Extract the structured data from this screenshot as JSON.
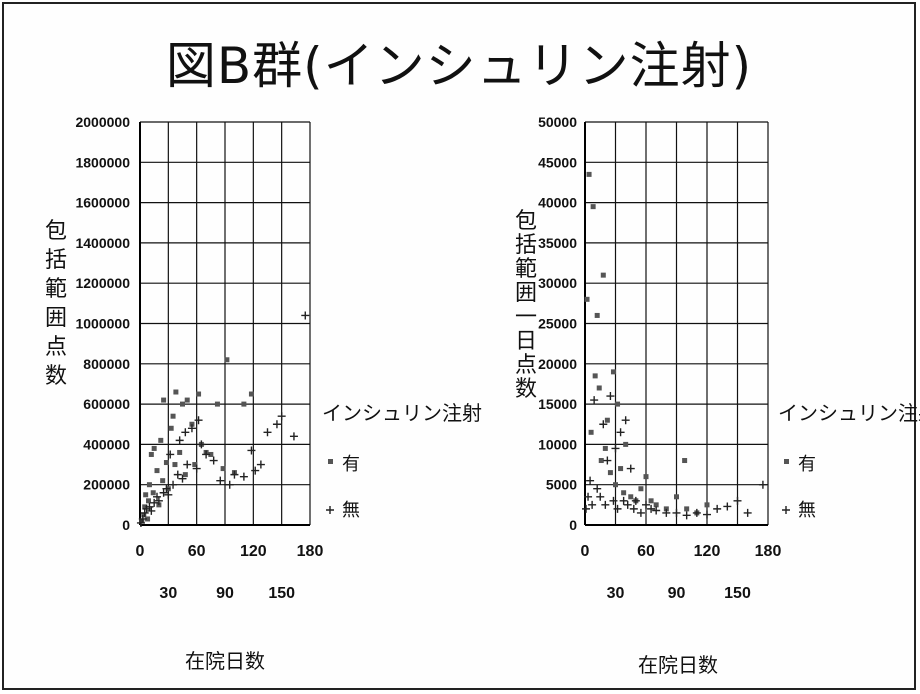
{
  "page": {
    "title": "図B群(インシュリン注射)"
  },
  "chart_data": [
    {
      "type": "scatter",
      "title": "",
      "ylabel": "包括範囲点数",
      "xlabel": "在院日数",
      "xlim": [
        0,
        180
      ],
      "ylim": [
        0,
        2000000
      ],
      "xticks_upper": [
        "0",
        "60",
        "120",
        "180"
      ],
      "xticks_lower": [
        "30",
        "90",
        "150"
      ],
      "yticks": [
        "0",
        "200000",
        "400000",
        "600000",
        "800000",
        "1000000",
        "1200000",
        "1400000",
        "1600000",
        "1800000",
        "2000000"
      ],
      "legend": {
        "title": "インシュリン注射",
        "position": "right"
      },
      "series": [
        {
          "name": "有",
          "marker": "square",
          "points": [
            [
              2,
              20000
            ],
            [
              4,
              50000
            ],
            [
              5,
              90000
            ],
            [
              6,
              150000
            ],
            [
              8,
              30000
            ],
            [
              9,
              120000
            ],
            [
              10,
              200000
            ],
            [
              12,
              350000
            ],
            [
              14,
              160000
            ],
            [
              15,
              380000
            ],
            [
              18,
              270000
            ],
            [
              20,
              100000
            ],
            [
              22,
              420000
            ],
            [
              24,
              220000
            ],
            [
              25,
              620000
            ],
            [
              28,
              310000
            ],
            [
              30,
              180000
            ],
            [
              33,
              480000
            ],
            [
              35,
              540000
            ],
            [
              37,
              300000
            ],
            [
              38,
              660000
            ],
            [
              42,
              360000
            ],
            [
              45,
              600000
            ],
            [
              48,
              250000
            ],
            [
              50,
              620000
            ],
            [
              55,
              500000
            ],
            [
              58,
              300000
            ],
            [
              62,
              650000
            ],
            [
              65,
              400000
            ],
            [
              70,
              360000
            ],
            [
              75,
              350000
            ],
            [
              82,
              600000
            ],
            [
              88,
              280000
            ],
            [
              92,
              820000
            ],
            [
              100,
              260000
            ],
            [
              110,
              600000
            ],
            [
              118,
              650000
            ]
          ]
        },
        {
          "name": "無",
          "marker": "plus",
          "points": [
            [
              1,
              10000
            ],
            [
              3,
              30000
            ],
            [
              5,
              60000
            ],
            [
              7,
              80000
            ],
            [
              10,
              90000
            ],
            [
              12,
              70000
            ],
            [
              15,
              110000
            ],
            [
              18,
              140000
            ],
            [
              20,
              120000
            ],
            [
              25,
              160000
            ],
            [
              28,
              180000
            ],
            [
              30,
              150000
            ],
            [
              32,
              350000
            ],
            [
              35,
              200000
            ],
            [
              40,
              250000
            ],
            [
              42,
              420000
            ],
            [
              45,
              230000
            ],
            [
              48,
              460000
            ],
            [
              50,
              300000
            ],
            [
              55,
              480000
            ],
            [
              60,
              280000
            ],
            [
              62,
              520000
            ],
            [
              65,
              400000
            ],
            [
              70,
              350000
            ],
            [
              78,
              320000
            ],
            [
              85,
              220000
            ],
            [
              95,
              200000
            ],
            [
              100,
              250000
            ],
            [
              110,
              240000
            ],
            [
              118,
              370000
            ],
            [
              122,
              270000
            ],
            [
              128,
              300000
            ],
            [
              135,
              460000
            ],
            [
              145,
              500000
            ],
            [
              150,
              540000
            ],
            [
              163,
              440000
            ],
            [
              175,
              1040000
            ]
          ]
        }
      ]
    },
    {
      "type": "scatter",
      "title": "",
      "ylabel": "包括範囲一日点数",
      "xlabel": "在院日数",
      "xlim": [
        0,
        180
      ],
      "ylim": [
        0,
        50000
      ],
      "xticks_upper": [
        "0",
        "60",
        "120",
        "180"
      ],
      "xticks_lower": [
        "30",
        "90",
        "150"
      ],
      "yticks": [
        "0",
        "5000",
        "10000",
        "15000",
        "20000",
        "25000",
        "30000",
        "35000",
        "40000",
        "45000",
        "50000"
      ],
      "legend": {
        "title": "インシュリン注射",
        "position": "right"
      },
      "series": [
        {
          "name": "有",
          "marker": "square",
          "points": [
            [
              2,
              28000
            ],
            [
              4,
              43500
            ],
            [
              6,
              11500
            ],
            [
              8,
              39500
            ],
            [
              10,
              18500
            ],
            [
              12,
              26000
            ],
            [
              14,
              17000
            ],
            [
              16,
              8000
            ],
            [
              18,
              31000
            ],
            [
              20,
              9500
            ],
            [
              22,
              13000
            ],
            [
              25,
              6500
            ],
            [
              28,
              19000
            ],
            [
              30,
              5000
            ],
            [
              32,
              15000
            ],
            [
              35,
              7000
            ],
            [
              38,
              4000
            ],
            [
              40,
              10000
            ],
            [
              45,
              3500
            ],
            [
              50,
              3000
            ],
            [
              55,
              4500
            ],
            [
              60,
              6000
            ],
            [
              65,
              3000
            ],
            [
              70,
              2500
            ],
            [
              80,
              2000
            ],
            [
              90,
              3500
            ],
            [
              98,
              8000
            ],
            [
              100,
              2000
            ],
            [
              110,
              1500
            ],
            [
              120,
              2500
            ]
          ]
        },
        {
          "name": "無",
          "marker": "plus",
          "points": [
            [
              1,
              2000
            ],
            [
              3,
              3500
            ],
            [
              5,
              5500
            ],
            [
              7,
              2500
            ],
            [
              9,
              15500
            ],
            [
              12,
              4500
            ],
            [
              15,
              3500
            ],
            [
              18,
              12500
            ],
            [
              20,
              2500
            ],
            [
              22,
              8000
            ],
            [
              25,
              16000
            ],
            [
              28,
              3000
            ],
            [
              30,
              9500
            ],
            [
              32,
              2000
            ],
            [
              35,
              11500
            ],
            [
              38,
              3000
            ],
            [
              40,
              13000
            ],
            [
              42,
              2500
            ],
            [
              45,
              7000
            ],
            [
              48,
              2000
            ],
            [
              50,
              3000
            ],
            [
              55,
              1500
            ],
            [
              60,
              2500
            ],
            [
              65,
              2000
            ],
            [
              70,
              1800
            ],
            [
              80,
              1500
            ],
            [
              90,
              1500
            ],
            [
              100,
              1200
            ],
            [
              110,
              1500
            ],
            [
              120,
              1300
            ],
            [
              130,
              2000
            ],
            [
              140,
              2300
            ],
            [
              150,
              3000
            ],
            [
              160,
              1500
            ],
            [
              175,
              5000
            ]
          ]
        }
      ]
    }
  ]
}
